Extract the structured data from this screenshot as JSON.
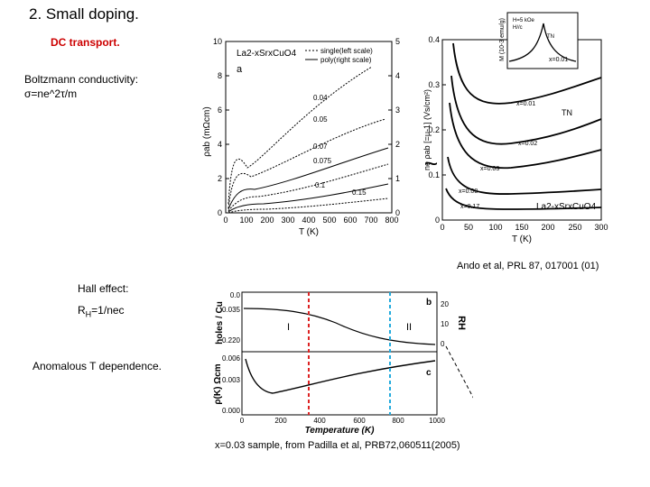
{
  "slide": {
    "title": "2. Small doping.",
    "dc_heading": "DC transport.",
    "boltzmann_label": "Boltzmann conductivity:",
    "boltzmann_formula": "σ=ne^2τ/m",
    "hall_label": "Hall effect:",
    "hall_formula_main": "R",
    "hall_formula_sub": "H",
    "hall_formula_rest": "=1/nec",
    "anomalous_label": "Anomalous T dependence.",
    "ando_citation": "Ando et al, PRL 87, 017001 (01)",
    "padilla_citation": "x=0.03 sample, from Padilla et al, PRB72,060511(2005)",
    "tilde_symbol": "~"
  },
  "chart_data": [
    {
      "type": "line",
      "panel": "resistivity",
      "formula": "La2-xSrxCuO4",
      "panel_letter": "a",
      "legend": [
        "single(left scale)",
        "poly(right scale)"
      ],
      "legend_placement": "top-right",
      "xlabel": "T (K)",
      "ylabel": "ρab (mΩcm)",
      "xlim": [
        0,
        300
      ],
      "ylim_left": [
        0,
        10
      ],
      "ylim_right": [
        0,
        5
      ],
      "x_ticks": [
        0,
        100,
        200,
        300,
        400,
        500,
        600,
        700,
        800
      ],
      "y_ticks_left": [
        0,
        2,
        4,
        6,
        8,
        10
      ],
      "y_ticks_right": [
        0,
        1,
        2,
        3,
        4,
        5
      ],
      "curve_labels": [
        "0.04",
        "0.05",
        "0.07",
        "0.075",
        "0.1",
        "0.15"
      ]
    },
    {
      "type": "line",
      "panel": "mobility",
      "formula": "La2-xSrxCuO4",
      "ylabel": "ne ρab [=μ-1] (Vs/cm²)",
      "xlabel": "T (K)",
      "xlim": [
        0,
        300
      ],
      "ylim": [
        0,
        0.4
      ],
      "x_ticks": [
        0,
        50,
        100,
        150,
        200,
        250,
        300
      ],
      "y_ticks": [
        0,
        0.1,
        0.2,
        0.3,
        0.4
      ],
      "curve_labels": [
        "x=0.01",
        "x=0.02",
        "x=0.03",
        "x=0.08",
        "x=0.17"
      ],
      "tn_label": "TN"
    },
    {
      "type": "line",
      "panel": "inset-susceptibility",
      "ylabel": "M (10-3 emu/g)",
      "field_label": "H=5 kOe",
      "orientation_label": "H//c",
      "sample_label": "x=0.01",
      "peak_label": "TN"
    },
    {
      "type": "line",
      "panel": "hall",
      "panel_letter": "b",
      "ylabel": "holes / Cu",
      "y2label": "RH",
      "y_ticks": [
        "0.0",
        "0.035",
        "0.220"
      ],
      "y2_ticks": [
        20,
        10,
        0
      ],
      "region_labels": [
        "I",
        "II"
      ]
    },
    {
      "type": "line",
      "panel": "resistivity-padilla",
      "panel_letter": "c",
      "ylabel": "ρ(K) Ωcm",
      "xlabel": "Temperature (K)",
      "xlim": [
        0,
        1000
      ],
      "x_ticks": [
        0,
        200,
        400,
        600,
        800,
        1000
      ],
      "y_ticks": [
        "0.000",
        "0.003",
        "0.006"
      ]
    }
  ]
}
